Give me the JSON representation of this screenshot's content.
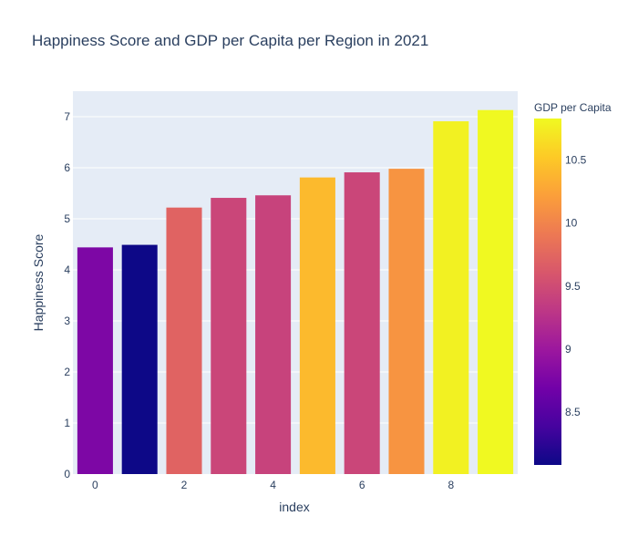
{
  "chart_data": {
    "type": "bar",
    "title": "Happiness Score and GDP per Capita per Region in 2021",
    "xlabel": "index",
    "ylabel": "Happiness Score",
    "x": [
      0,
      1,
      2,
      3,
      4,
      5,
      6,
      7,
      8,
      9
    ],
    "values": [
      4.44,
      4.49,
      5.22,
      5.41,
      5.46,
      5.81,
      5.91,
      5.98,
      6.91,
      7.13
    ],
    "color_values": [
      8.77,
      8.08,
      9.72,
      9.45,
      9.42,
      10.41,
      9.45,
      10.13,
      10.78,
      10.83
    ],
    "x_ticks": [
      "0",
      "2",
      "4",
      "6",
      "8"
    ],
    "y_ticks": [
      "0",
      "1",
      "2",
      "3",
      "4",
      "5",
      "6",
      "7"
    ],
    "ylim": [
      0,
      7.5
    ],
    "xlim": [
      -0.5,
      9.5
    ],
    "grid": true,
    "colorbar": {
      "title": "GDP per Capita",
      "ticks": [
        "8.5",
        "9",
        "9.5",
        "10",
        "10.5"
      ],
      "range": [
        8.08,
        10.83
      ],
      "colorscale": [
        "#0d0887",
        "#46039f",
        "#7201a8",
        "#9c179e",
        "#bd3786",
        "#d8576b",
        "#ed7953",
        "#fb9f3a",
        "#fdca26",
        "#f0f921"
      ]
    },
    "plot_background": "#e5ecf6"
  }
}
